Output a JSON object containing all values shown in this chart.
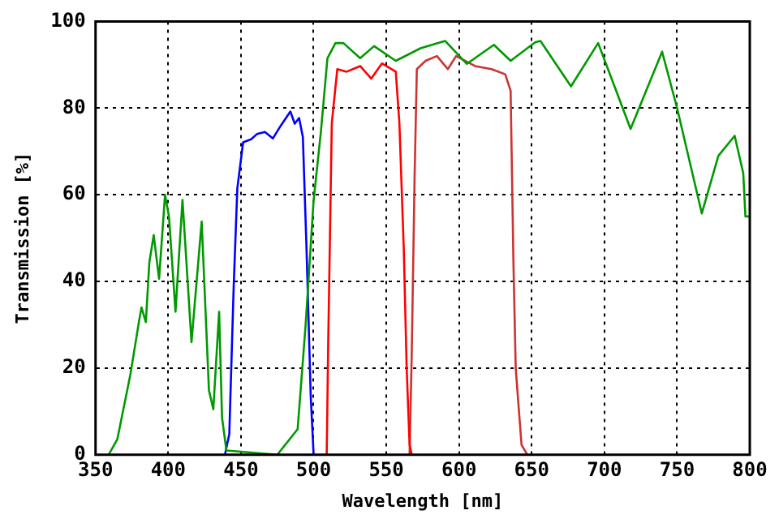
{
  "chart_data": {
    "type": "line",
    "xlabel": "Wavelength [nm]",
    "ylabel": "Transmission [%]",
    "xlim": [
      350,
      800
    ],
    "xticks": [
      350,
      400,
      450,
      500,
      550,
      600,
      650,
      700,
      750,
      800
    ],
    "ylim": [
      0,
      100
    ],
    "yticks": [
      0,
      20,
      40,
      60,
      80,
      100
    ],
    "grid": true,
    "legend": false,
    "marker": "none",
    "line_style": "solid",
    "series": [
      {
        "color": "#009900",
        "x": [
          359,
          365,
          374,
          380,
          381.6,
          384.6,
          387,
          390,
          393.7,
          397.8,
          400.5,
          405,
          409.8,
          416,
          423,
          428,
          431,
          435,
          437,
          440,
          475,
          489,
          494.5,
          500,
          505,
          509.5,
          515,
          520.5,
          532,
          541.6,
          556.5,
          573.5,
          590.4,
          605.4,
          624,
          635.5,
          652.5,
          656,
          677,
          695.7,
          718,
          739.7,
          750,
          767,
          778.4,
          789.6,
          795.5,
          797,
          800
        ],
        "values": [
          0,
          3.6,
          18.6,
          31,
          34,
          30.6,
          44.4,
          50.7,
          40.6,
          60,
          55,
          33,
          58.8,
          26,
          53.8,
          14.9,
          10.5,
          33,
          8.6,
          1,
          0,
          5.9,
          30,
          58.7,
          74.5,
          91.5,
          95,
          95,
          91.5,
          94.3,
          90.9,
          93.8,
          95.5,
          90.2,
          94.6,
          90.9,
          95.2,
          95.5,
          85,
          95,
          75.2,
          93,
          80,
          55.7,
          69,
          73.6,
          65,
          55,
          55
        ]
      },
      {
        "color": "#0000ff",
        "x": [
          439,
          442,
          445,
          447.5,
          451.5,
          457,
          461,
          466.5,
          472,
          477.5,
          484,
          487,
          490,
          492.6,
          495,
          498,
          500
        ],
        "values": [
          0,
          4.8,
          38.6,
          61.4,
          72.1,
          72.8,
          74,
          74.5,
          73,
          76,
          79.2,
          76.4,
          77.7,
          73.3,
          48.8,
          13.6,
          0
        ]
      },
      {
        "color": "#ff0000",
        "x": [
          509,
          510,
          512.5,
          516.3,
          522.7,
          532,
          539.6,
          547,
          556.5,
          559,
          562,
          564,
          566,
          567.5
        ],
        "values": [
          0,
          25,
          76.5,
          89,
          88.4,
          89.7,
          86.8,
          90.3,
          88.4,
          76.5,
          47.6,
          20,
          2.3,
          0
        ]
      },
      {
        "color": "#cc3333",
        "x": [
          566,
          567.5,
          569.5,
          571,
          577,
          584.8,
          592.3,
          598,
          611,
          622.4,
          631.8,
          635.5,
          637.4,
          639,
          643,
          647
        ],
        "values": [
          0,
          23.6,
          65,
          89,
          90.9,
          92,
          89,
          92,
          89.7,
          89,
          87.8,
          84,
          45,
          20,
          2.3,
          0
        ]
      }
    ]
  }
}
